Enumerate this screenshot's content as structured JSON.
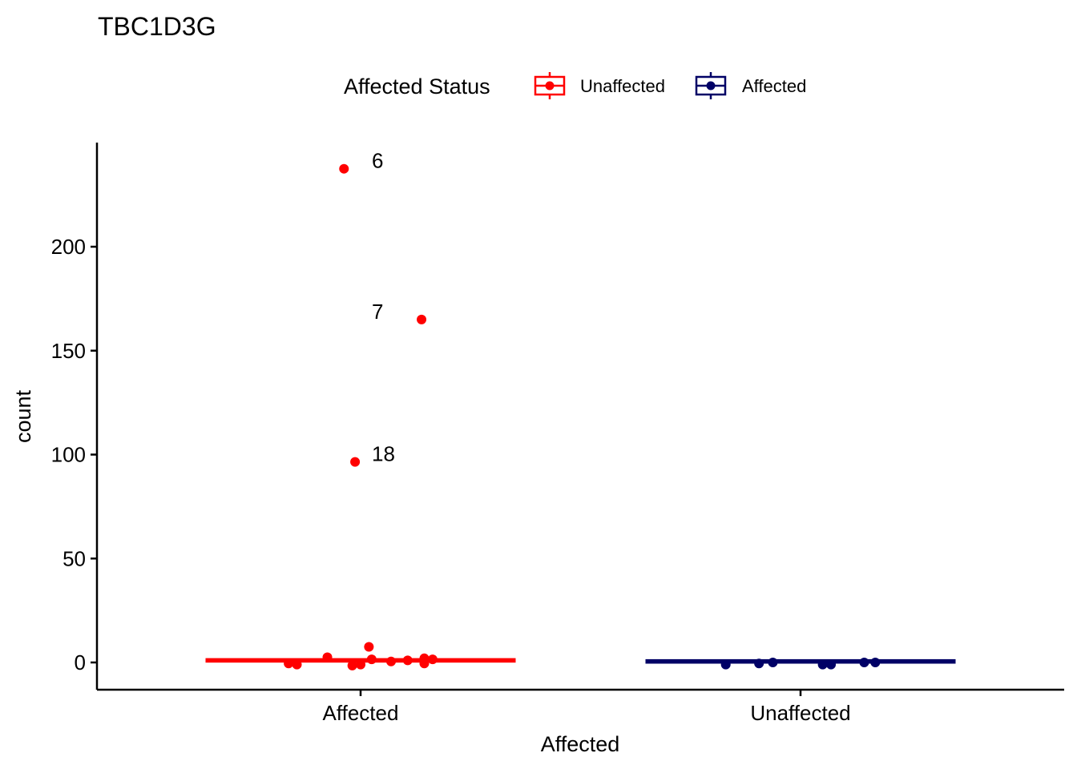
{
  "chart_data": {
    "type": "box",
    "title": "TBC1D3G",
    "xlabel": "Affected",
    "ylabel": "count",
    "categories": [
      "Affected",
      "Unaffected"
    ],
    "ylim": [
      -13,
      250
    ],
    "yticks": [
      0,
      50,
      100,
      150,
      200
    ],
    "grid": false,
    "legend": {
      "title": "Affected Status",
      "placement": "top",
      "entries": [
        {
          "label": "Unaffected",
          "color": "#FF0000"
        },
        {
          "label": "Affected",
          "color": "#000066"
        }
      ]
    },
    "series": [
      {
        "name": "Unaffected",
        "category": "Affected",
        "color": "#FF0000",
        "box": {
          "q1": 0.5,
          "median": 1,
          "q3": 1.5
        },
        "points": [
          {
            "jitter": -0.06,
            "y": 237.5
          },
          {
            "jitter": 0.22,
            "y": 165
          },
          {
            "jitter": -0.02,
            "y": 96.5
          },
          {
            "jitter": 0.03,
            "y": 7.5
          },
          {
            "jitter": -0.12,
            "y": 2.5
          },
          {
            "jitter": 0.04,
            "y": 1.5
          },
          {
            "jitter": 0.23,
            "y": 2
          },
          {
            "jitter": 0.26,
            "y": 1.5
          },
          {
            "jitter": 0.17,
            "y": 1
          },
          {
            "jitter": 0.11,
            "y": 0.5
          },
          {
            "jitter": -0.26,
            "y": -0.5
          },
          {
            "jitter": -0.23,
            "y": -1
          },
          {
            "jitter": -0.03,
            "y": -1.5
          },
          {
            "jitter": 0.0,
            "y": -1
          },
          {
            "jitter": 0.23,
            "y": -0.5
          }
        ],
        "labels": [
          {
            "text": "6",
            "y": 237.5
          },
          {
            "text": "7",
            "y": 165
          },
          {
            "text": "18",
            "y": 96.5
          }
        ]
      },
      {
        "name": "Affected",
        "category": "Unaffected",
        "color": "#000066",
        "box": {
          "q1": 0,
          "median": 0.5,
          "q3": 1
        },
        "points": [
          {
            "jitter": -0.27,
            "y": -1
          },
          {
            "jitter": -0.15,
            "y": -0.5
          },
          {
            "jitter": -0.1,
            "y": 0
          },
          {
            "jitter": 0.08,
            "y": -1
          },
          {
            "jitter": 0.11,
            "y": -1
          },
          {
            "jitter": 0.23,
            "y": 0
          },
          {
            "jitter": 0.27,
            "y": 0
          }
        ],
        "labels": []
      }
    ]
  }
}
